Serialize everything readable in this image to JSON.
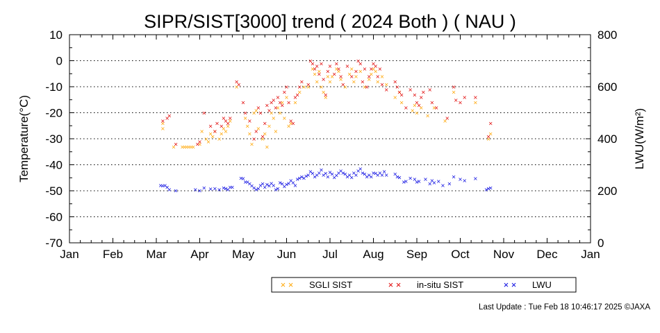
{
  "chart_data": {
    "type": "scatter",
    "title": "SIPR/SIST[3000] trend ( 2024 Both ) ( NAU )",
    "ylabel": "Temperature(°C)",
    "ylabel2": "LWU(W/m²)",
    "ylim": [
      -70,
      10
    ],
    "y2lim": [
      0,
      800
    ],
    "yticks": [
      "10",
      "0",
      "-10",
      "-20",
      "-30",
      "-40",
      "-50",
      "-60",
      "-70"
    ],
    "y2ticks": [
      "800",
      "600",
      "400",
      "200",
      "0"
    ],
    "xticks": [
      "Jan",
      "Feb",
      "Mar",
      "Apr",
      "May",
      "Jun",
      "Jul",
      "Aug",
      "Sep",
      "Oct",
      "Nov",
      "Dec",
      "Jan"
    ],
    "grid": "horizontal dotted",
    "legend_position": "bottom-right",
    "colors": {
      "sgli": "#ffa500",
      "insitu": "#e00000",
      "lwu": "#0000e0"
    },
    "series": [
      {
        "name": "SGLI SIST",
        "axis": "left",
        "x_unit": "month (1=Jan, 13=Jan next year)",
        "points": [
          [
            3.15,
            -26
          ],
          [
            3.15,
            -24
          ],
          [
            3.4,
            -33
          ],
          [
            3.6,
            -33
          ],
          [
            3.65,
            -33
          ],
          [
            3.7,
            -33
          ],
          [
            3.75,
            -33
          ],
          [
            3.8,
            -33
          ],
          [
            3.85,
            -33
          ],
          [
            4.0,
            -32
          ],
          [
            4.05,
            -27
          ],
          [
            4.15,
            -30
          ],
          [
            4.2,
            -31
          ],
          [
            4.25,
            -28
          ],
          [
            4.3,
            -29
          ],
          [
            4.35,
            -27
          ],
          [
            4.45,
            -30
          ],
          [
            4.5,
            -28
          ],
          [
            4.55,
            -26
          ],
          [
            4.6,
            -27
          ],
          [
            4.65,
            -25
          ],
          [
            4.7,
            -23
          ],
          [
            4.85,
            -10
          ],
          [
            5.05,
            -22
          ],
          [
            5.1,
            -25
          ],
          [
            5.15,
            -28
          ],
          [
            5.2,
            -32
          ],
          [
            5.25,
            -20
          ],
          [
            5.3,
            -19
          ],
          [
            5.35,
            -26
          ],
          [
            5.45,
            -30
          ],
          [
            5.5,
            -28
          ],
          [
            5.55,
            -33
          ],
          [
            5.6,
            -25
          ],
          [
            5.65,
            -20
          ],
          [
            5.7,
            -22
          ],
          [
            5.75,
            -27
          ],
          [
            5.8,
            -18
          ],
          [
            5.85,
            -20
          ],
          [
            5.9,
            -16
          ],
          [
            5.95,
            -22
          ],
          [
            6.0,
            -14
          ],
          [
            6.05,
            -25
          ],
          [
            6.1,
            -24
          ],
          [
            6.2,
            -16
          ],
          [
            6.3,
            -12
          ],
          [
            6.4,
            -10
          ],
          [
            6.5,
            -10
          ],
          [
            6.6,
            -3
          ],
          [
            6.65,
            -5
          ],
          [
            6.7,
            -8
          ],
          [
            6.75,
            -4
          ],
          [
            6.8,
            -10
          ],
          [
            6.85,
            -12
          ],
          [
            6.9,
            -14
          ],
          [
            6.95,
            -6
          ],
          [
            7.0,
            -8
          ],
          [
            7.05,
            -6
          ],
          [
            7.15,
            -3
          ],
          [
            7.2,
            -4
          ],
          [
            7.25,
            -7
          ],
          [
            7.35,
            -10
          ],
          [
            7.45,
            -5
          ],
          [
            7.5,
            -3
          ],
          [
            7.55,
            -8
          ],
          [
            7.6,
            -6
          ],
          [
            7.7,
            -4
          ],
          [
            7.8,
            -10
          ],
          [
            7.9,
            -7
          ],
          [
            7.95,
            -5
          ],
          [
            8.0,
            -3
          ],
          [
            8.05,
            -4
          ],
          [
            8.1,
            -8
          ],
          [
            8.2,
            -6
          ],
          [
            8.3,
            -9
          ],
          [
            8.5,
            -14
          ],
          [
            8.6,
            -12
          ],
          [
            8.65,
            -16
          ],
          [
            8.9,
            -19
          ],
          [
            8.95,
            -17
          ],
          [
            9.0,
            -20
          ],
          [
            9.1,
            -18
          ],
          [
            9.25,
            -21
          ],
          [
            9.4,
            -18
          ],
          [
            9.65,
            -23
          ],
          [
            9.85,
            -12
          ],
          [
            10.35,
            -16
          ],
          [
            10.65,
            -30
          ],
          [
            10.7,
            -28
          ]
        ]
      },
      {
        "name": "in-situ SIST",
        "axis": "left",
        "x_unit": "month (1=Jan, 13=Jan next year)",
        "points": [
          [
            3.15,
            -23
          ],
          [
            3.25,
            -22
          ],
          [
            3.3,
            -21
          ],
          [
            3.45,
            -32
          ],
          [
            3.95,
            -32
          ],
          [
            4.0,
            -31
          ],
          [
            4.1,
            -20
          ],
          [
            4.25,
            -25
          ],
          [
            4.35,
            -27
          ],
          [
            4.4,
            -24
          ],
          [
            4.5,
            -25
          ],
          [
            4.55,
            -22
          ],
          [
            4.6,
            -23
          ],
          [
            4.65,
            -24
          ],
          [
            4.7,
            -22
          ],
          [
            4.85,
            -8
          ],
          [
            4.9,
            -9
          ],
          [
            5.0,
            -16
          ],
          [
            5.05,
            -20
          ],
          [
            5.15,
            -23
          ],
          [
            5.25,
            -30
          ],
          [
            5.3,
            -27
          ],
          [
            5.35,
            -18
          ],
          [
            5.4,
            -20
          ],
          [
            5.45,
            -29
          ],
          [
            5.5,
            -24
          ],
          [
            5.55,
            -17
          ],
          [
            5.6,
            -19
          ],
          [
            5.65,
            -16
          ],
          [
            5.7,
            -15
          ],
          [
            5.75,
            -18
          ],
          [
            5.8,
            -14
          ],
          [
            5.85,
            -16
          ],
          [
            5.9,
            -17
          ],
          [
            5.95,
            -12
          ],
          [
            6.0,
            -10
          ],
          [
            6.05,
            -16
          ],
          [
            6.1,
            -23
          ],
          [
            6.15,
            -24
          ],
          [
            6.2,
            -14
          ],
          [
            6.25,
            -13
          ],
          [
            6.3,
            -10
          ],
          [
            6.35,
            -8
          ],
          [
            6.5,
            -9
          ],
          [
            6.55,
            0
          ],
          [
            6.6,
            -1
          ],
          [
            6.65,
            -3
          ],
          [
            6.7,
            -2
          ],
          [
            6.75,
            -5
          ],
          [
            6.8,
            -1
          ],
          [
            6.85,
            -7
          ],
          [
            6.9,
            -13
          ],
          [
            6.95,
            -4
          ],
          [
            7.0,
            -2
          ],
          [
            7.1,
            -5
          ],
          [
            7.15,
            -1
          ],
          [
            7.2,
            -3
          ],
          [
            7.25,
            -6
          ],
          [
            7.3,
            -9
          ],
          [
            7.4,
            -2
          ],
          [
            7.5,
            -6
          ],
          [
            7.6,
            -4
          ],
          [
            7.65,
            0
          ],
          [
            7.7,
            -1
          ],
          [
            7.75,
            -8
          ],
          [
            7.8,
            -3
          ],
          [
            7.85,
            -10
          ],
          [
            7.9,
            -6
          ],
          [
            7.95,
            -3
          ],
          [
            8.0,
            -1
          ],
          [
            8.05,
            -2
          ],
          [
            8.1,
            -6
          ],
          [
            8.15,
            -3
          ],
          [
            8.2,
            -9
          ],
          [
            8.3,
            -11
          ],
          [
            8.5,
            -8
          ],
          [
            8.55,
            -10
          ],
          [
            8.6,
            -12
          ],
          [
            8.65,
            -13
          ],
          [
            8.75,
            -18
          ],
          [
            8.85,
            -11
          ],
          [
            8.95,
            -13
          ],
          [
            9.0,
            -16
          ],
          [
            9.05,
            -17
          ],
          [
            9.1,
            -14
          ],
          [
            9.15,
            -12
          ],
          [
            9.3,
            -11
          ],
          [
            9.35,
            -16
          ],
          [
            9.45,
            -18
          ],
          [
            9.7,
            -22
          ],
          [
            9.85,
            -10
          ],
          [
            9.9,
            -15
          ],
          [
            10.0,
            -16
          ],
          [
            10.1,
            -14
          ],
          [
            10.35,
            -14
          ],
          [
            10.65,
            -29
          ],
          [
            10.7,
            -24
          ]
        ]
      },
      {
        "name": "LWU",
        "axis": "right",
        "x_unit": "month (1=Jan, 13=Jan next year)",
        "points": [
          [
            3.1,
            222
          ],
          [
            3.15,
            220
          ],
          [
            3.2,
            222
          ],
          [
            3.25,
            215
          ],
          [
            3.3,
            205
          ],
          [
            3.45,
            202
          ],
          [
            3.9,
            205
          ],
          [
            4.0,
            202
          ],
          [
            4.1,
            212
          ],
          [
            4.25,
            208
          ],
          [
            4.35,
            210
          ],
          [
            4.45,
            205
          ],
          [
            4.55,
            212
          ],
          [
            4.6,
            210
          ],
          [
            4.65,
            205
          ],
          [
            4.7,
            215
          ],
          [
            4.75,
            215
          ],
          [
            4.95,
            250
          ],
          [
            5.0,
            248
          ],
          [
            5.05,
            235
          ],
          [
            5.1,
            235
          ],
          [
            5.15,
            228
          ],
          [
            5.2,
            220
          ],
          [
            5.25,
            212
          ],
          [
            5.3,
            205
          ],
          [
            5.35,
            210
          ],
          [
            5.4,
            222
          ],
          [
            5.45,
            228
          ],
          [
            5.5,
            215
          ],
          [
            5.55,
            225
          ],
          [
            5.6,
            220
          ],
          [
            5.65,
            230
          ],
          [
            5.7,
            222
          ],
          [
            5.75,
            205
          ],
          [
            5.8,
            210
          ],
          [
            5.85,
            232
          ],
          [
            5.9,
            228
          ],
          [
            5.95,
            218
          ],
          [
            6.0,
            225
          ],
          [
            6.05,
            230
          ],
          [
            6.1,
            240
          ],
          [
            6.15,
            232
          ],
          [
            6.2,
            222
          ],
          [
            6.25,
            245
          ],
          [
            6.3,
            250
          ],
          [
            6.35,
            255
          ],
          [
            6.4,
            250
          ],
          [
            6.45,
            258
          ],
          [
            6.5,
            262
          ],
          [
            6.55,
            275
          ],
          [
            6.6,
            268
          ],
          [
            6.65,
            255
          ],
          [
            6.7,
            262
          ],
          [
            6.75,
            270
          ],
          [
            6.8,
            282
          ],
          [
            6.85,
            262
          ],
          [
            6.9,
            268
          ],
          [
            6.95,
            255
          ],
          [
            7.0,
            272
          ],
          [
            7.05,
            265
          ],
          [
            7.1,
            252
          ],
          [
            7.15,
            260
          ],
          [
            7.2,
            270
          ],
          [
            7.25,
            278
          ],
          [
            7.3,
            270
          ],
          [
            7.35,
            265
          ],
          [
            7.4,
            255
          ],
          [
            7.45,
            262
          ],
          [
            7.5,
            252
          ],
          [
            7.55,
            270
          ],
          [
            7.6,
            262
          ],
          [
            7.65,
            278
          ],
          [
            7.7,
            285
          ],
          [
            7.75,
            270
          ],
          [
            7.8,
            265
          ],
          [
            7.85,
            255
          ],
          [
            7.9,
            262
          ],
          [
            7.95,
            255
          ],
          [
            8.0,
            270
          ],
          [
            8.05,
            268
          ],
          [
            8.1,
            262
          ],
          [
            8.15,
            270
          ],
          [
            8.2,
            262
          ],
          [
            8.25,
            275
          ],
          [
            8.3,
            262
          ],
          [
            8.5,
            265
          ],
          [
            8.55,
            255
          ],
          [
            8.6,
            252
          ],
          [
            8.7,
            235
          ],
          [
            8.75,
            238
          ],
          [
            8.85,
            250
          ],
          [
            8.95,
            245
          ],
          [
            9.0,
            235
          ],
          [
            9.05,
            238
          ],
          [
            9.2,
            245
          ],
          [
            9.3,
            228
          ],
          [
            9.35,
            240
          ],
          [
            9.4,
            232
          ],
          [
            9.5,
            238
          ],
          [
            9.6,
            222
          ],
          [
            9.75,
            228
          ],
          [
            9.85,
            255
          ],
          [
            10.0,
            245
          ],
          [
            10.1,
            240
          ],
          [
            10.35,
            248
          ],
          [
            10.6,
            205
          ],
          [
            10.65,
            210
          ],
          [
            10.7,
            212
          ]
        ]
      }
    ]
  },
  "footer": "Last Update : Tue Feb 18 10:46:17 2025  ©JAXA"
}
